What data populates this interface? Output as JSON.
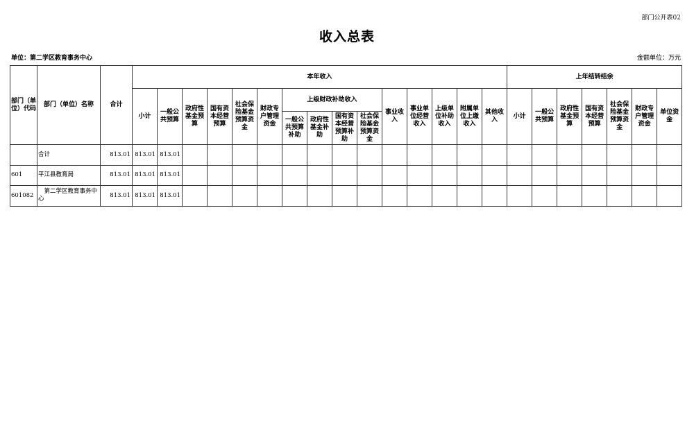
{
  "form_number": "部门公开表02",
  "title": "收入总表",
  "unit_label": "单位：第二学区教育事务中心",
  "money_unit": "金额单位：万元",
  "table": {
    "headers": {
      "code": "部门（单位）代码",
      "name": "部门（单位）名称",
      "total": "合计",
      "current_year": "本年收入",
      "prior_year": "上年结转结余",
      "current_cols_a": [
        "小计",
        "一般公共预算",
        "政府性基金预算",
        "国有资本经营预算",
        "社会保险基金预算资金",
        "财政专户管理资金"
      ],
      "superior_subsidy": "上级财政补助收入",
      "superior_subcols": [
        "一般公共预算补助",
        "政府性基金补助",
        "国有资本经营预算补助",
        "社会保险基金预算资金"
      ],
      "current_cols_b": [
        "事业收入",
        "事业单位经营收入",
        "上级单位补助收入",
        "附属单位上缴收入",
        "其他收入"
      ],
      "prior_cols": [
        "小计",
        "一般公共预算",
        "政府性基金预算",
        "国有资本经营预算",
        "社会保险基金预算资金",
        "财政专户管理资金",
        "单位资金"
      ]
    },
    "rows": [
      {
        "code": "",
        "name": "合计",
        "total": "813.01",
        "subtotal": "813.01",
        "general_budget": "813.01"
      },
      {
        "code": "601",
        "name": "平江县教育局",
        "total": "813.01",
        "subtotal": "813.01",
        "general_budget": "813.01"
      },
      {
        "code": "601082",
        "name": "　第二学区教育事务中心",
        "total": "813.01",
        "subtotal": "813.01",
        "general_budget": "813.01"
      }
    ]
  }
}
